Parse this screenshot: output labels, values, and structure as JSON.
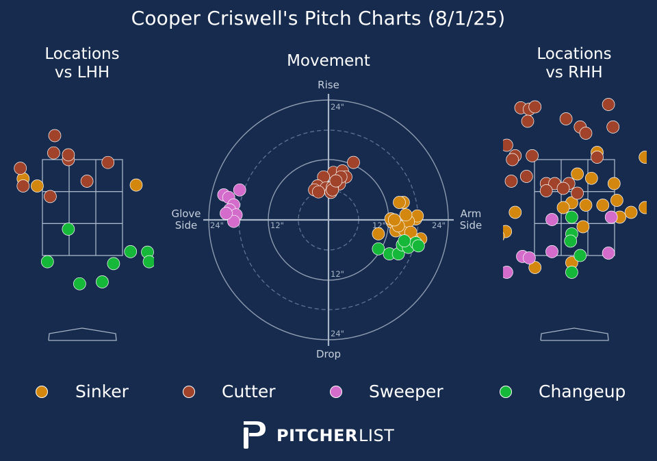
{
  "title": "Cooper Criswell's Pitch Charts (8/1/25)",
  "panels": {
    "lhh": {
      "title_line1": "Locations",
      "title_line2": "vs LHH"
    },
    "movement": {
      "title": "Movement"
    },
    "rhh": {
      "title_line1": "Locations",
      "title_line2": "vs RHH"
    }
  },
  "colors": {
    "background": "#162b4d",
    "Sinker": "#d4870e",
    "Cutter": "#a0432a",
    "Sweeper": "#d36ccb",
    "Changeup": "#16b83a"
  },
  "movement_axes": {
    "top": "Rise",
    "bottom": "Drop",
    "left_line1": "Glove",
    "left_line2": "Side",
    "right_line1": "Arm",
    "right_line2": "Side",
    "ring_labels": [
      "24\"",
      "12\"",
      "12\"",
      "24\"",
      "24\"",
      "12\"",
      "12\"",
      "24\""
    ]
  },
  "legend": [
    "Sinker",
    "Cutter",
    "Sweeper",
    "Changeup"
  ],
  "brand": {
    "bold": "PITCHER",
    "light": "LIST"
  },
  "chart_data": [
    {
      "type": "scatter",
      "title": "Locations vs LHH",
      "units": "feet from plate center (catcher view), height in feet",
      "series": [
        {
          "name": "Sinker",
          "points": [
            [
              -1.05,
              3.1
            ],
            [
              -0.8,
              2.95
            ],
            [
              0.95,
              2.97
            ]
          ]
        },
        {
          "name": "Cutter",
          "points": [
            [
              -0.49,
              4.0
            ],
            [
              -0.51,
              3.64
            ],
            [
              -0.25,
              3.5
            ],
            [
              -0.25,
              3.6
            ],
            [
              0.45,
              3.44
            ],
            [
              -1.1,
              3.32
            ],
            [
              -1.05,
              2.95
            ],
            [
              0.08,
              3.05
            ],
            [
              -0.57,
              2.73
            ]
          ]
        },
        {
          "name": "Sweeper",
          "points": []
        },
        {
          "name": "Changeup",
          "points": [
            [
              -0.25,
              2.05
            ],
            [
              1.7,
              1.83
            ],
            [
              0.85,
              1.58
            ],
            [
              1.15,
              1.57
            ],
            [
              -0.62,
              1.37
            ],
            [
              0.55,
              1.33
            ],
            [
              1.18,
              1.37
            ],
            [
              -0.05,
              0.91
            ],
            [
              0.35,
              0.95
            ]
          ]
        }
      ]
    },
    {
      "type": "scatter",
      "title": "Movement",
      "xlabel": "Glove Side / Arm Side (inches)",
      "ylabel": "Drop / Rise (inches)",
      "xlim": [
        -24,
        24
      ],
      "ylim": [
        -24,
        24
      ],
      "series": [
        {
          "name": "Sinker",
          "points": [
            [
              15.0,
              3.5
            ],
            [
              14.2,
              3.5
            ],
            [
              12.8,
              -0.5
            ],
            [
              16.2,
              0.2
            ],
            [
              17.5,
              0.2
            ],
            [
              13.5,
              -2.2
            ],
            [
              15.2,
              -2.0
            ],
            [
              17.8,
              0.8
            ],
            [
              10.0,
              -2.8
            ],
            [
              18.5,
              -3.8
            ],
            [
              16.8,
              -3.8
            ],
            [
              12.5,
              0.2
            ],
            [
              16.0,
              -0.3
            ],
            [
              14.0,
              -1.2
            ],
            [
              15.5,
              1.0
            ],
            [
              13.2,
              0.0
            ],
            [
              16.5,
              -2.5
            ]
          ]
        },
        {
          "name": "Cutter",
          "points": [
            [
              5.0,
              11.5
            ],
            [
              1.0,
              9.5
            ],
            [
              2.8,
              9.8
            ],
            [
              3.5,
              8.6
            ],
            [
              -1.0,
              8.6
            ],
            [
              2.2,
              7.2
            ],
            [
              -2.2,
              6.8
            ],
            [
              -0.5,
              6.4
            ],
            [
              0.8,
              6.6
            ],
            [
              -2.8,
              6.0
            ],
            [
              0.5,
              5.5
            ],
            [
              -2.0,
              5.6
            ],
            [
              0.8,
              6.0
            ],
            [
              2.5,
              8.6
            ],
            [
              1.5,
              7.8
            ]
          ]
        },
        {
          "name": "Sweeper",
          "points": [
            [
              -17.8,
              6.0
            ],
            [
              -21.0,
              5.0
            ],
            [
              -20.0,
              4.5
            ],
            [
              -19.0,
              3.0
            ],
            [
              -19.8,
              2.0
            ],
            [
              -18.5,
              1.0
            ],
            [
              -19.0,
              -0.3
            ],
            [
              -20.5,
              1.3
            ]
          ]
        },
        {
          "name": "Changeup",
          "points": [
            [
              10.0,
              -5.8
            ],
            [
              12.2,
              -6.8
            ],
            [
              14.0,
              -6.8
            ],
            [
              14.8,
              -5.0
            ],
            [
              16.0,
              -5.5
            ],
            [
              17.5,
              -4.6
            ],
            [
              18.0,
              -5.2
            ],
            [
              15.2,
              -4.2
            ]
          ]
        }
      ]
    },
    {
      "type": "scatter",
      "title": "Locations vs RHH",
      "units": "feet from plate center (catcher view), height in feet",
      "series": [
        {
          "name": "Sinker",
          "points": [
            [
              0.4,
              3.65
            ],
            [
              0.05,
              3.2
            ],
            [
              0.3,
              3.11
            ],
            [
              0.7,
              3.0
            ],
            [
              1.25,
              3.55
            ],
            [
              1.68,
              3.78
            ],
            [
              1.95,
              3.42
            ],
            [
              2.2,
              3.1
            ],
            [
              2.02,
              2.85
            ],
            [
              0.75,
              2.65
            ],
            [
              1.0,
              2.4
            ],
            [
              1.25,
              2.5
            ],
            [
              0.5,
              2.55
            ],
            [
              0.8,
              2.3
            ],
            [
              0.2,
              2.55
            ],
            [
              -0.05,
              2.6
            ],
            [
              -0.2,
              2.5
            ],
            [
              0.15,
              2.1
            ],
            [
              -1.05,
              2.4
            ],
            [
              -1.22,
              2.0
            ],
            [
              -1.35,
              1.9
            ],
            [
              -0.7,
              1.25
            ],
            [
              -0.05,
              1.35
            ],
            [
              2.3,
              2.3
            ]
          ]
        },
        {
          "name": "Cutter",
          "points": [
            [
              -0.95,
              4.58
            ],
            [
              -0.8,
              4.55
            ],
            [
              -0.7,
              4.6
            ],
            [
              0.6,
              4.65
            ],
            [
              -0.83,
              4.3
            ],
            [
              -0.15,
              4.35
            ],
            [
              0.1,
              4.18
            ],
            [
              0.2,
              4.05
            ],
            [
              0.68,
              4.18
            ],
            [
              -1.2,
              3.8
            ],
            [
              -1.05,
              3.58
            ],
            [
              -1.1,
              3.5
            ],
            [
              -0.75,
              3.58
            ],
            [
              0.4,
              3.55
            ],
            [
              -1.12,
              3.05
            ],
            [
              -0.85,
              3.15
            ],
            [
              -0.5,
              3.0
            ],
            [
              -0.35,
              3.0
            ],
            [
              -0.1,
              3.0
            ],
            [
              -0.2,
              2.9
            ],
            [
              -0.5,
              2.85
            ],
            [
              0.05,
              2.8
            ]
          ]
        },
        {
          "name": "Sweeper",
          "points": [
            [
              -0.4,
              2.25
            ],
            [
              0.65,
              2.3
            ],
            [
              -0.92,
              1.48
            ],
            [
              -0.8,
              1.45
            ],
            [
              -0.4,
              1.58
            ],
            [
              0.6,
              1.55
            ],
            [
              -1.2,
              1.15
            ]
          ]
        },
        {
          "name": "Changeup",
          "points": [
            [
              -0.05,
              2.3
            ],
            [
              -0.05,
              1.95
            ],
            [
              -0.07,
              1.8
            ],
            [
              0.1,
              1.5
            ],
            [
              -0.05,
              1.15
            ]
          ]
        }
      ]
    }
  ]
}
